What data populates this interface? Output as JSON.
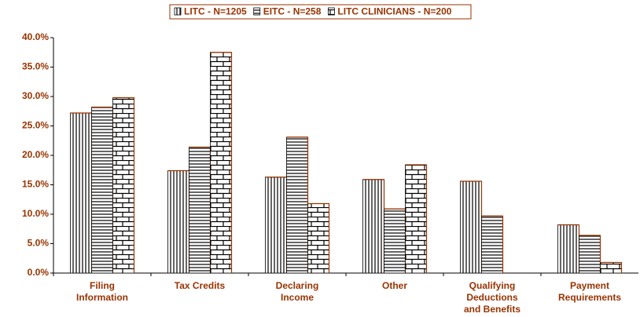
{
  "chart_data": {
    "type": "bar",
    "categories": [
      "Filing\nInformation",
      "Tax Credits",
      "Declaring\nIncome",
      "Other",
      "Qualifying\nDeductions\nand Benefits",
      "Payment\nRequirements"
    ],
    "series": [
      {
        "name": "LITC - N=1205",
        "color": "#000000",
        "pattern": "vertical",
        "values": [
          27.2,
          17.4,
          16.3,
          15.9,
          15.6,
          8.2
        ]
      },
      {
        "name": "EITC - N=258",
        "color": "#000000",
        "pattern": "horizontal",
        "values": [
          28.2,
          21.4,
          23.1,
          10.9,
          9.7,
          6.4
        ]
      },
      {
        "name": "LITC CLINICIANS - N=200",
        "color": "#000000",
        "pattern": "brick",
        "values": [
          29.8,
          37.5,
          11.8,
          18.4,
          null,
          1.8
        ]
      }
    ],
    "ylim": [
      0,
      40
    ],
    "yticks": [
      {
        "value": 0,
        "label": "0.0%"
      },
      {
        "value": 5,
        "label": "5.0%"
      },
      {
        "value": 10,
        "label": "10.0%"
      },
      {
        "value": 15,
        "label": "15.0%"
      },
      {
        "value": 20,
        "label": "20.0%"
      },
      {
        "value": 25,
        "label": "25.0%"
      },
      {
        "value": 30,
        "label": "30.0%"
      },
      {
        "value": 35,
        "label": "35.0%"
      },
      {
        "value": 40,
        "label": "40.0%"
      }
    ],
    "grid": false,
    "legend": "top"
  }
}
